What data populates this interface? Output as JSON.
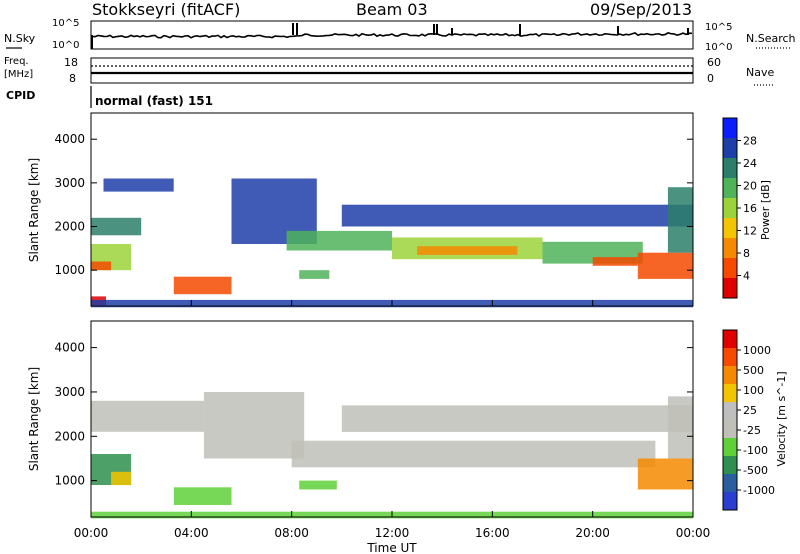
{
  "header": {
    "station": "Stokkseyri (fitACF)",
    "beam": "Beam 03",
    "date": "09/Sep/2013"
  },
  "noise_panel": {
    "left_label": "N.Sky",
    "right_label": "N.Search",
    "left_ticks": [
      "10^5",
      "10^0"
    ],
    "right_ticks": [
      "10^5",
      "10^0"
    ]
  },
  "freq_panel": {
    "left_label_1": "Freq.",
    "left_label_2": "[MHz]",
    "right_label": "Nave",
    "left_ticks": [
      "18",
      "8"
    ],
    "right_ticks": [
      "60",
      "0"
    ]
  },
  "cpid": {
    "label": "CPID",
    "value": "normal (fast) 151"
  },
  "colors": {
    "power": [
      "#0a1eff",
      "#1e3ea8",
      "#2b7f6a",
      "#4fb35a",
      "#9bd43a",
      "#f5c400",
      "#f58a00",
      "#f54a00",
      "#e00000"
    ],
    "velocity": [
      "#2a3ecf",
      "#2a5e9f",
      "#2f8f4f",
      "#5fd03a",
      "#c0c0b8",
      "#bfbfbf",
      "#f5c400",
      "#f58a00",
      "#f54a00",
      "#e00000"
    ],
    "ground_scatter": "#c0c0b8"
  },
  "chart_data": [
    {
      "type": "heatmap",
      "title": "",
      "xlabel": "Time UT",
      "ylabel": "Slant Range [km]",
      "x_ticks": [
        "00:00",
        "04:00",
        "08:00",
        "12:00",
        "16:00",
        "20:00",
        "00:00"
      ],
      "y_ticks": [
        "1000",
        "2000",
        "3000",
        "4000"
      ],
      "colorbar": {
        "label": "Power [dB]",
        "ticks": [
          "4",
          "8",
          "12",
          "16",
          "20",
          "24",
          "28"
        ]
      },
      "regions": [
        {
          "t0": 0.0,
          "t1": 2.0,
          "r0": 1800,
          "r1": 2200,
          "level": 2
        },
        {
          "t0": 0.5,
          "t1": 3.3,
          "r0": 2800,
          "r1": 3100,
          "level": 1
        },
        {
          "t0": 0.0,
          "t1": 1.6,
          "r0": 1000,
          "r1": 1600,
          "level": 4
        },
        {
          "t0": 0.0,
          "t1": 0.8,
          "r0": 1000,
          "r1": 1200,
          "level": 7
        },
        {
          "t0": 0.0,
          "t1": 0.6,
          "r0": 200,
          "r1": 400,
          "level": 8
        },
        {
          "t0": 3.3,
          "t1": 5.6,
          "r0": 450,
          "r1": 850,
          "level": 7
        },
        {
          "t0": 5.6,
          "t1": 9.0,
          "r0": 1600,
          "r1": 3100,
          "level": 1
        },
        {
          "t0": 7.8,
          "t1": 12.0,
          "r0": 1450,
          "r1": 1900,
          "level": 3
        },
        {
          "t0": 12.0,
          "t1": 18.0,
          "r0": 1250,
          "r1": 1750,
          "level": 4
        },
        {
          "t0": 13.0,
          "t1": 17.0,
          "r0": 1350,
          "r1": 1550,
          "level": 6
        },
        {
          "t0": 18.0,
          "t1": 22.0,
          "r0": 1150,
          "r1": 1650,
          "level": 3
        },
        {
          "t0": 20.0,
          "t1": 21.8,
          "r0": 1100,
          "r1": 1300,
          "level": 7
        },
        {
          "t0": 10.0,
          "t1": 24.0,
          "r0": 2000,
          "r1": 2500,
          "level": 1
        },
        {
          "t0": 21.8,
          "t1": 24.0,
          "r0": 800,
          "r1": 1400,
          "level": 7
        },
        {
          "t0": 23.0,
          "t1": 24.0,
          "r0": 1400,
          "r1": 2900,
          "level": 2
        },
        {
          "t0": 8.3,
          "t1": 9.5,
          "r0": 800,
          "r1": 1000,
          "level": 3
        },
        {
          "t0": 0.0,
          "t1": 24.0,
          "r0": 150,
          "r1": 320,
          "level": 1
        }
      ]
    },
    {
      "type": "heatmap",
      "title": "",
      "xlabel": "Time UT",
      "ylabel": "Slant Range [km]",
      "x_ticks": [
        "00:00",
        "04:00",
        "08:00",
        "12:00",
        "16:00",
        "20:00",
        "00:00"
      ],
      "y_ticks": [
        "1000",
        "2000",
        "3000",
        "4000"
      ],
      "colorbar": {
        "label": "Velocity [m s^-1]",
        "ticks": [
          "1000",
          "500",
          "100",
          "25",
          "-25",
          "-100",
          "-500",
          "-1000"
        ]
      },
      "regions": [
        {
          "t0": 0.0,
          "t1": 4.5,
          "r0": 2100,
          "r1": 2800,
          "level": 4
        },
        {
          "t0": 4.5,
          "t1": 8.5,
          "r0": 1500,
          "r1": 3000,
          "level": 4
        },
        {
          "t0": 8.0,
          "t1": 22.5,
          "r0": 1300,
          "r1": 1900,
          "level": 4
        },
        {
          "t0": 10.0,
          "t1": 24.0,
          "r0": 2100,
          "r1": 2700,
          "level": 4
        },
        {
          "t0": 0.0,
          "t1": 1.6,
          "r0": 900,
          "r1": 1600,
          "level": 2
        },
        {
          "t0": 0.8,
          "t1": 1.6,
          "r0": 900,
          "r1": 1200,
          "level": 6
        },
        {
          "t0": 3.3,
          "t1": 5.6,
          "r0": 450,
          "r1": 850,
          "level": 3
        },
        {
          "t0": 8.3,
          "t1": 9.8,
          "r0": 800,
          "r1": 1000,
          "level": 3
        },
        {
          "t0": 21.8,
          "t1": 24.0,
          "r0": 800,
          "r1": 1500,
          "level": 7
        },
        {
          "t0": 23.0,
          "t1": 24.0,
          "r0": 1500,
          "r1": 2900,
          "level": 4
        },
        {
          "t0": 0.0,
          "t1": 24.0,
          "r0": 150,
          "r1": 300,
          "level": 3
        }
      ]
    }
  ]
}
